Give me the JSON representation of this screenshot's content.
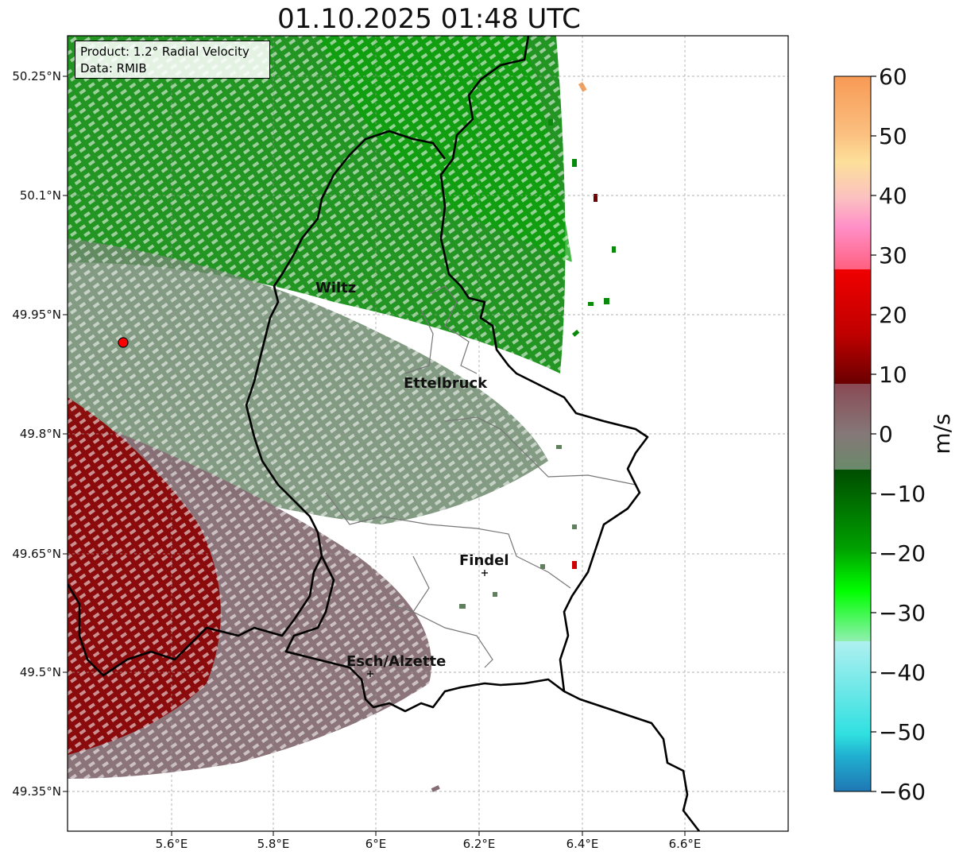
{
  "title": "01.10.2025 01:48 UTC",
  "info_box": {
    "product": "Product: 1.2° Radial Velocity",
    "data": "Data: RMIB"
  },
  "axes": {
    "lon_ticks": [
      "5.6°E",
      "5.8°E",
      "6°E",
      "6.2°E",
      "6.4°E",
      "6.6°E"
    ],
    "lat_ticks": [
      "50.25°N",
      "50.1°N",
      "49.95°N",
      "49.8°N",
      "49.65°N",
      "49.5°N",
      "49.35°N"
    ],
    "grid": true
  },
  "colorbar": {
    "label": "m/s",
    "ticks": [
      "60",
      "50",
      "40",
      "30",
      "20",
      "10",
      "0",
      "−10",
      "−20",
      "−30",
      "−40",
      "−50",
      "−60"
    ],
    "colors_top_to_bottom": [
      "#f7a060",
      "#fbbf7f",
      "#fde09a",
      "#fbc1c1",
      "#ff90c8",
      "#ff6080",
      "#ee0000",
      "#a00000",
      "#6a0000",
      "#8a4a55",
      "#857878",
      "#6a8a6a",
      "#006400",
      "#00a000",
      "#00ff00",
      "#60ff80",
      "#a0f0f0",
      "#40e0e0",
      "#1f77b4"
    ]
  },
  "cities": [
    {
      "name": "Wiltz"
    },
    {
      "name": "Ettelbruck"
    },
    {
      "name": "Findel"
    },
    {
      "name": "Esch/Alzette"
    }
  ],
  "colors": {
    "outbound_red": "#8b0000",
    "inbound_green": "#008000",
    "zero_gray": "#7f7f7f",
    "radar_marker": "#ff0000"
  }
}
